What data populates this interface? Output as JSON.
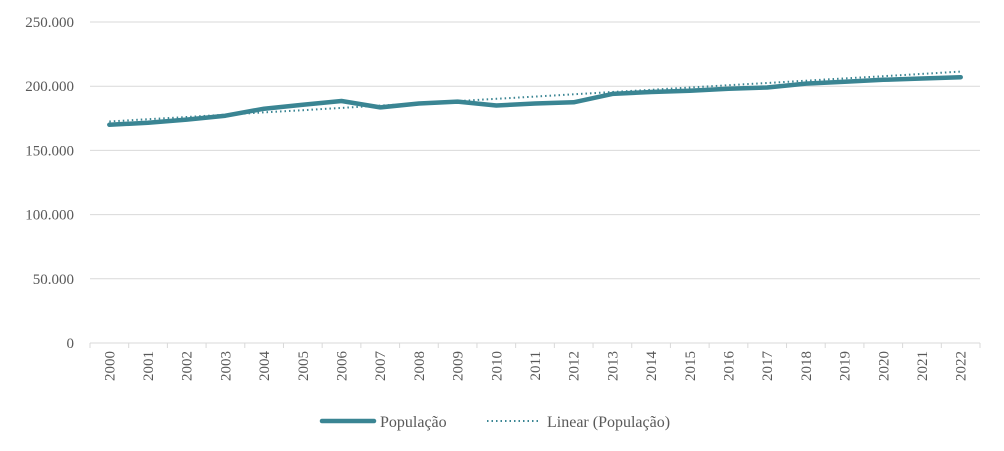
{
  "chart_data": {
    "type": "line",
    "title": "",
    "xlabel": "",
    "ylabel": "",
    "categories": [
      "2000",
      "2001",
      "2002",
      "2003",
      "2004",
      "2005",
      "2006",
      "2007",
      "2008",
      "2009",
      "2010",
      "2011",
      "2012",
      "2013",
      "2014",
      "2015",
      "2016",
      "2017",
      "2018",
      "2019",
      "2020",
      "2021",
      "2022"
    ],
    "series": [
      {
        "name": "População",
        "style": "solid",
        "color": "#3a8593",
        "values": [
          170000,
          171500,
          174000,
          177000,
          182500,
          185500,
          188500,
          183500,
          186500,
          188000,
          185000,
          186500,
          187500,
          194000,
          195500,
          196500,
          198000,
          199000,
          202000,
          203500,
          205000,
          206000,
          207000
        ]
      },
      {
        "name": "Linear (População)",
        "style": "dotted",
        "color": "#3a8593",
        "trendline_of": "População",
        "values": [
          172500,
          174300,
          176000,
          177800,
          179600,
          181300,
          183100,
          184900,
          186600,
          188400,
          190200,
          191900,
          193700,
          195500,
          197200,
          199000,
          200800,
          202500,
          204300,
          206100,
          207800,
          209600,
          211400
        ]
      }
    ],
    "ylim": [
      0,
      250000
    ],
    "yticks": [
      0,
      50000,
      100000,
      150000,
      200000,
      250000
    ],
    "ytick_labels": [
      "0",
      "50.000",
      "100.000",
      "150.000",
      "200.000",
      "250.000"
    ],
    "grid": true,
    "legend_position": "bottom",
    "legend": [
      "População",
      "Linear (População)"
    ]
  }
}
